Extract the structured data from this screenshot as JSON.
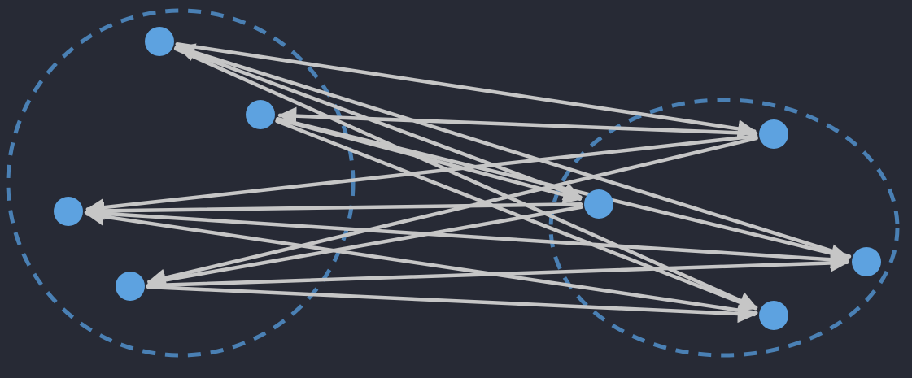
{
  "colors": {
    "background": "#272a35",
    "node": "#5da2e0",
    "edge": "#c6c6c6",
    "group_outline": "#4a80b4"
  },
  "groups": [
    {
      "id": "left-group",
      "style": "dashed-ellipse"
    },
    {
      "id": "right-group",
      "style": "dashed-ellipse"
    }
  ],
  "nodes": [
    {
      "id": "L1",
      "group": "left-group"
    },
    {
      "id": "L2",
      "group": "left-group"
    },
    {
      "id": "L3",
      "group": "left-group"
    },
    {
      "id": "L4",
      "group": "left-group"
    },
    {
      "id": "R1",
      "group": "right-group"
    },
    {
      "id": "R2",
      "group": "right-group"
    },
    {
      "id": "R3",
      "group": "right-group"
    },
    {
      "id": "R4",
      "group": "right-group"
    }
  ],
  "edges": [
    {
      "from": "L1",
      "to": "R1"
    },
    {
      "from": "R3",
      "to": "L1"
    },
    {
      "from": "L1",
      "to": "R4"
    },
    {
      "from": "L1",
      "to": "R2"
    },
    {
      "from": "R1",
      "to": "L2"
    },
    {
      "from": "L2",
      "to": "R2"
    },
    {
      "from": "L2",
      "to": "R3"
    },
    {
      "from": "L2",
      "to": "R4"
    },
    {
      "from": "R1",
      "to": "L3"
    },
    {
      "from": "R2",
      "to": "L3"
    },
    {
      "from": "L3",
      "to": "R3"
    },
    {
      "from": "R4",
      "to": "L3"
    },
    {
      "from": "R1",
      "to": "L4"
    },
    {
      "from": "L4",
      "to": "R3"
    },
    {
      "from": "R2",
      "to": "L4"
    },
    {
      "from": "L4",
      "to": "R4"
    }
  ]
}
